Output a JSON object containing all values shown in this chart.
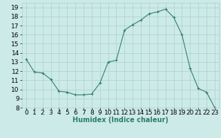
{
  "x": [
    0,
    1,
    2,
    3,
    4,
    5,
    6,
    7,
    8,
    9,
    10,
    11,
    12,
    13,
    14,
    15,
    16,
    17,
    18,
    19,
    20,
    21,
    22,
    23
  ],
  "y": [
    13.3,
    11.9,
    11.8,
    11.1,
    9.8,
    9.7,
    9.4,
    9.4,
    9.5,
    10.7,
    13.0,
    13.2,
    16.5,
    17.1,
    17.6,
    18.3,
    18.5,
    18.8,
    17.9,
    16.0,
    12.3,
    10.1,
    9.7,
    8.0
  ],
  "line_color": "#2e7d6e",
  "marker": "+",
  "marker_size": 3,
  "marker_lw": 0.8,
  "line_width": 0.8,
  "bg_color": "#cceae7",
  "grid_color": "#aad0cc",
  "xlabel": "Humidex (Indice chaleur)",
  "ylim": [
    8,
    19.5
  ],
  "xlim": [
    -0.5,
    23.5
  ],
  "yticks": [
    8,
    9,
    10,
    11,
    12,
    13,
    14,
    15,
    16,
    17,
    18,
    19
  ],
  "xticks": [
    0,
    1,
    2,
    3,
    4,
    5,
    6,
    7,
    8,
    9,
    10,
    11,
    12,
    13,
    14,
    15,
    16,
    17,
    18,
    19,
    20,
    21,
    22,
    23
  ],
  "label_fontsize": 7,
  "tick_fontsize": 6.5
}
